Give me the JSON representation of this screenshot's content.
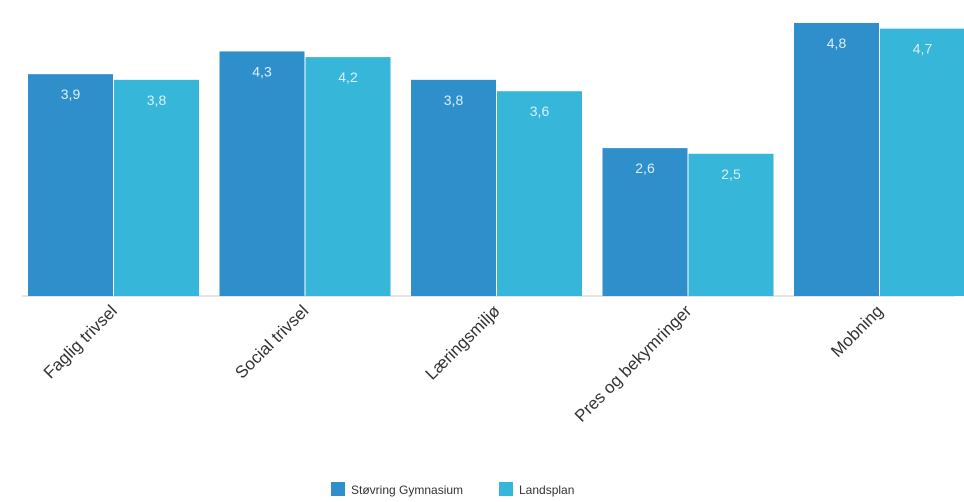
{
  "chart_data": {
    "type": "bar",
    "categories": [
      "Faglig trivsel",
      "Social trivsel",
      "Læringsmiljø",
      "Pres og bekymringer",
      "Mobning"
    ],
    "series": [
      {
        "name": "Støvring Gymnasium",
        "values": [
          3.9,
          4.3,
          3.8,
          2.6,
          4.8
        ],
        "labels": [
          "3,9",
          "4,3",
          "3,8",
          "2,6",
          "4,8"
        ],
        "color": "#2f8fcb"
      },
      {
        "name": "Landsplan",
        "values": [
          3.8,
          4.2,
          3.6,
          2.5,
          4.7
        ],
        "labels": [
          "3,8",
          "4,2",
          "3,6",
          "2,5",
          "4,7"
        ],
        "color": "#36b6d8"
      }
    ],
    "ylim": [
      0,
      5
    ],
    "grid": false,
    "legend_position": "bottom-center",
    "data_labels": "inside-top"
  }
}
